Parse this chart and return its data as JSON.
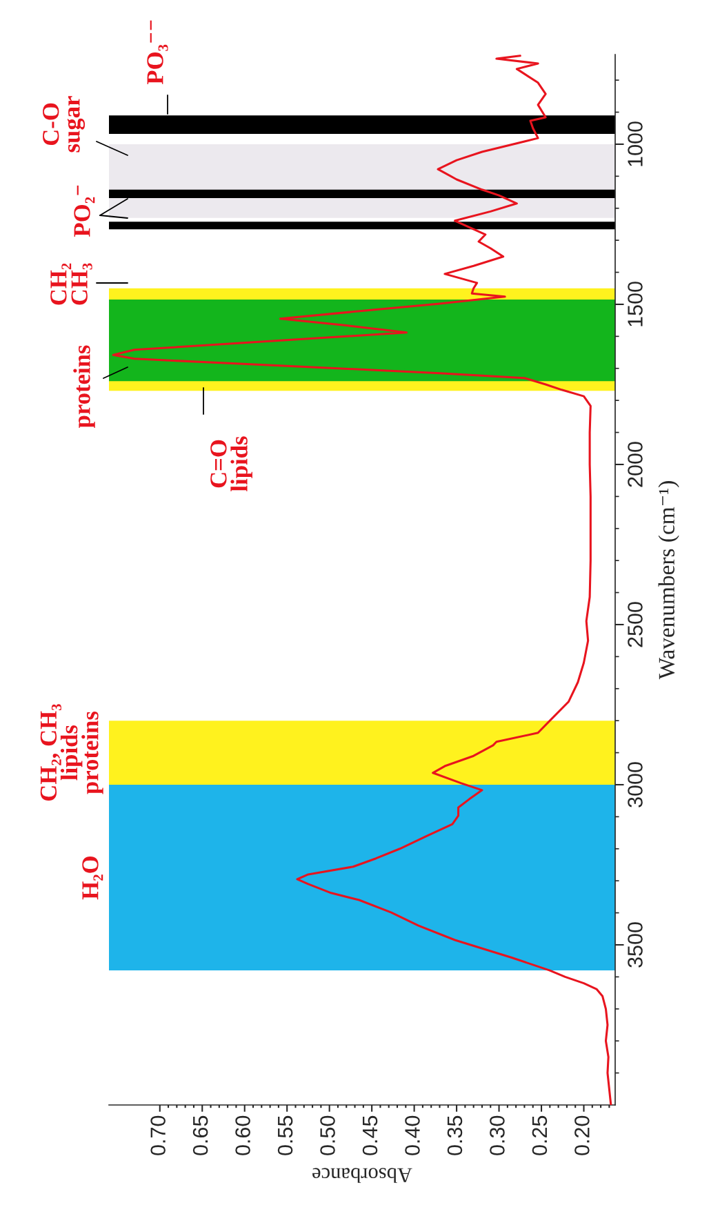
{
  "chart_data": {
    "type": "line",
    "orientation": "horizontal",
    "color": "#e8141e",
    "xlabel": "Absorbance",
    "ylabel": "Wavenumbers (cm⁻¹)",
    "xlim": [
      0.76,
      0.163
    ],
    "ylim": [
      4000,
      720
    ],
    "xticks": [
      {
        "value": 0.17,
        "label": null
      },
      {
        "value": 0.18,
        "label": null
      },
      {
        "value": 0.19,
        "label": null
      },
      {
        "value": 0.2,
        "label": "0.20"
      },
      {
        "value": 0.21,
        "label": null
      },
      {
        "value": 0.22,
        "label": null
      },
      {
        "value": 0.23,
        "label": null
      },
      {
        "value": 0.24,
        "label": null
      },
      {
        "value": 0.25,
        "label": "0.25"
      },
      {
        "value": 0.26,
        "label": null
      },
      {
        "value": 0.27,
        "label": null
      },
      {
        "value": 0.28,
        "label": null
      },
      {
        "value": 0.29,
        "label": null
      },
      {
        "value": 0.3,
        "label": "0.30"
      },
      {
        "value": 0.31,
        "label": null
      },
      {
        "value": 0.32,
        "label": null
      },
      {
        "value": 0.33,
        "label": null
      },
      {
        "value": 0.34,
        "label": null
      },
      {
        "value": 0.35,
        "label": "0.35"
      },
      {
        "value": 0.36,
        "label": null
      },
      {
        "value": 0.37,
        "label": null
      },
      {
        "value": 0.38,
        "label": null
      },
      {
        "value": 0.39,
        "label": null
      },
      {
        "value": 0.4,
        "label": "0.40"
      },
      {
        "value": 0.41,
        "label": null
      },
      {
        "value": 0.42,
        "label": null
      },
      {
        "value": 0.43,
        "label": null
      },
      {
        "value": 0.44,
        "label": null
      },
      {
        "value": 0.45,
        "label": "0.45"
      },
      {
        "value": 0.46,
        "label": null
      },
      {
        "value": 0.47,
        "label": null
      },
      {
        "value": 0.48,
        "label": null
      },
      {
        "value": 0.49,
        "label": null
      },
      {
        "value": 0.5,
        "label": "0.50"
      },
      {
        "value": 0.51,
        "label": null
      },
      {
        "value": 0.52,
        "label": null
      },
      {
        "value": 0.53,
        "label": null
      },
      {
        "value": 0.54,
        "label": null
      },
      {
        "value": 0.55,
        "label": "0.55"
      },
      {
        "value": 0.56,
        "label": null
      },
      {
        "value": 0.57,
        "label": null
      },
      {
        "value": 0.58,
        "label": null
      },
      {
        "value": 0.59,
        "label": null
      },
      {
        "value": 0.6,
        "label": "0.60"
      },
      {
        "value": 0.61,
        "label": null
      },
      {
        "value": 0.62,
        "label": null
      },
      {
        "value": 0.63,
        "label": null
      },
      {
        "value": 0.64,
        "label": null
      },
      {
        "value": 0.65,
        "label": "0.65"
      },
      {
        "value": 0.66,
        "label": null
      },
      {
        "value": 0.67,
        "label": null
      },
      {
        "value": 0.68,
        "label": null
      },
      {
        "value": 0.69,
        "label": null
      },
      {
        "value": 0.7,
        "label": "0.70"
      }
    ],
    "yticks": [
      {
        "value": 800,
        "label": null
      },
      {
        "value": 900,
        "label": null
      },
      1000,
      {
        "value": 1100,
        "label": null
      },
      {
        "value": 1200,
        "label": null
      },
      {
        "value": 1300,
        "label": null
      },
      {
        "value": 1400,
        "label": null
      },
      1500,
      {
        "value": 1600,
        "label": null
      },
      {
        "value": 1700,
        "label": null
      },
      {
        "value": 1800,
        "label": null
      },
      {
        "value": 1900,
        "label": null
      },
      2000,
      {
        "value": 2100,
        "label": null
      },
      {
        "value": 2200,
        "label": null
      },
      {
        "value": 2300,
        "label": null
      },
      {
        "value": 2400,
        "label": null
      },
      2500,
      {
        "value": 2600,
        "label": null
      },
      {
        "value": 2700,
        "label": null
      },
      {
        "value": 2800,
        "label": null
      },
      {
        "value": 2900,
        "label": null
      },
      3000,
      {
        "value": 3100,
        "label": null
      },
      {
        "value": 3200,
        "label": null
      },
      {
        "value": 3300,
        "label": null
      },
      {
        "value": 3400,
        "label": null
      },
      3500,
      {
        "value": 3600,
        "label": null
      },
      {
        "value": 3700,
        "label": null
      },
      {
        "value": 3800,
        "label": null
      },
      {
        "value": 3900,
        "label": null
      }
    ],
    "x": [
      4000,
      3950,
      3900,
      3850,
      3800,
      3750,
      3700,
      3660,
      3638,
      3620,
      3600,
      3580,
      3540,
      3485,
      3440,
      3399,
      3360,
      3338,
      3310,
      3295,
      3280,
      3256,
      3230,
      3200,
      3160,
      3123,
      3097,
      3071,
      3045,
      3017,
      2995,
      2963,
      2942,
      2910,
      2877,
      2866,
      2838,
      2800,
      2741,
      2680,
      2619,
      2550,
      2489,
      2414,
      2300,
      2200,
      2100,
      2000,
      1900,
      1817,
      1787,
      1767,
      1750,
      1730,
      1715,
      1700,
      1685,
      1670,
      1658,
      1642,
      1615,
      1588,
      1566,
      1545,
      1520,
      1498,
      1476,
      1466,
      1450,
      1433,
      1405,
      1380,
      1351,
      1325,
      1304,
      1282,
      1239,
      1210,
      1185,
      1160,
      1142,
      1110,
      1078,
      1050,
      1024,
      981,
      950,
      927,
      916,
      877,
      843,
      808,
      765,
      748,
      733,
      724
    ],
    "values": [
      0.168,
      0.17,
      0.172,
      0.171,
      0.174,
      0.172,
      0.174,
      0.178,
      0.185,
      0.2,
      0.222,
      0.24,
      0.285,
      0.352,
      0.395,
      0.427,
      0.465,
      0.498,
      0.525,
      0.538,
      0.525,
      0.472,
      0.445,
      0.417,
      0.385,
      0.355,
      0.348,
      0.348,
      0.335,
      0.32,
      0.345,
      0.378,
      0.364,
      0.33,
      0.307,
      0.303,
      0.254,
      0.24,
      0.218,
      0.207,
      0.2,
      0.195,
      0.197,
      0.193,
      0.192,
      0.192,
      0.192,
      0.193,
      0.193,
      0.192,
      0.2,
      0.226,
      0.245,
      0.27,
      0.37,
      0.49,
      0.61,
      0.73,
      0.755,
      0.73,
      0.57,
      0.409,
      0.48,
      0.558,
      0.46,
      0.37,
      0.293,
      0.332,
      0.33,
      0.326,
      0.364,
      0.33,
      0.295,
      0.31,
      0.324,
      0.316,
      0.352,
      0.31,
      0.279,
      0.3,
      0.32,
      0.35,
      0.372,
      0.35,
      0.32,
      0.254,
      0.26,
      0.263,
      0.245,
      0.254,
      0.245,
      0.254,
      0.279,
      0.254,
      0.303,
      0.275
    ],
    "bands": [
      {
        "axis": "y",
        "from": 3000,
        "to": 3580,
        "color": "#1eb4ea",
        "label": "H₂O"
      },
      {
        "axis": "y",
        "from": 2800,
        "to": 3000,
        "color": "#fff21e",
        "label": "CH₂, CH₃\nlipids\nproteins"
      },
      {
        "axis": "y",
        "from": 1450,
        "to": 1770,
        "color": "#fff21e"
      },
      {
        "axis": "y",
        "from": 1485,
        "to": 1740,
        "color": "#13b51c"
      },
      {
        "axis": "y",
        "from": 1000,
        "to": 1230,
        "color": "#ece9ee"
      },
      {
        "axis": "y",
        "from": 910,
        "to": 968,
        "color": "#000000"
      },
      {
        "axis": "y",
        "from": 1142,
        "to": 1168,
        "color": "#000000"
      },
      {
        "axis": "y",
        "from": 1242,
        "to": 1266,
        "color": "#000000"
      }
    ],
    "annotations": [
      "C=O\nlipids",
      "proteins",
      "CH₂\nCH₃",
      "PO₂⁻",
      "C-O\nsugar",
      "PO₃⁻⁻"
    ]
  }
}
